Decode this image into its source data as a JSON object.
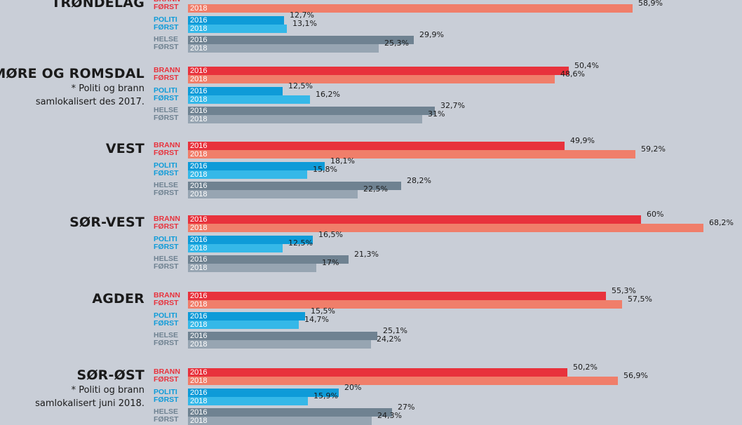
{
  "chart_data": {
    "type": "bar",
    "orientation": "horizontal",
    "xlim": [
      0,
      70
    ],
    "grid": false,
    "legend": "inline",
    "years": [
      "2016",
      "2018"
    ],
    "services": [
      {
        "key": "brann",
        "label_1": "BRANN",
        "label_2": "FØRST",
        "colors": [
          "#e8323c",
          "#f07e6a"
        ],
        "label_color": "#e8323c"
      },
      {
        "key": "politi",
        "label_1": "POLITI",
        "label_2": "FØRST",
        "colors": [
          "#0e9bd8",
          "#35b8e8"
        ],
        "label_color": "#0e9bd8"
      },
      {
        "key": "helse",
        "label_1": "HELSE",
        "label_2": "FØRST",
        "colors": [
          "#6f8291",
          "#97a5b2"
        ],
        "label_color": "#6f8291"
      }
    ],
    "regions": [
      {
        "name": "TRØNDELAG",
        "note": [],
        "brann": {
          "values": [
            null,
            58.9
          ],
          "labels": [
            "",
            "58,9%"
          ]
        },
        "politi": {
          "values": [
            12.7,
            13.1
          ],
          "labels": [
            "12,7%",
            "13,1%"
          ]
        },
        "helse": {
          "values": [
            29.9,
            25.3
          ],
          "labels": [
            "29,9%",
            "25,3%"
          ]
        }
      },
      {
        "name": "MØRE OG ROMSDAL",
        "note": [
          "* Politi og brann",
          "samlokalisert des 2017."
        ],
        "brann": {
          "values": [
            50.4,
            48.6
          ],
          "labels": [
            "50,4%",
            "48,6%"
          ]
        },
        "politi": {
          "values": [
            12.5,
            16.2
          ],
          "labels": [
            "12,5%",
            "16,2%"
          ]
        },
        "helse": {
          "values": [
            32.7,
            31
          ],
          "labels": [
            "32,7%",
            "31%"
          ]
        }
      },
      {
        "name": "VEST",
        "note": [],
        "brann": {
          "values": [
            49.9,
            59.2
          ],
          "labels": [
            "49,9%",
            "59,2%"
          ]
        },
        "politi": {
          "values": [
            18.1,
            15.8
          ],
          "labels": [
            "18,1%",
            "15,8%"
          ]
        },
        "helse": {
          "values": [
            28.2,
            22.5
          ],
          "labels": [
            "28,2%",
            "22,5%"
          ]
        }
      },
      {
        "name": "SØR-VEST",
        "note": [],
        "brann": {
          "values": [
            60,
            68.2
          ],
          "labels": [
            "60%",
            "68,2%"
          ]
        },
        "politi": {
          "values": [
            16.5,
            12.5
          ],
          "labels": [
            "16,5%",
            "12,5%"
          ]
        },
        "helse": {
          "values": [
            21.3,
            17
          ],
          "labels": [
            "21,3%",
            "17%"
          ]
        }
      },
      {
        "name": "AGDER",
        "note": [],
        "brann": {
          "values": [
            55.3,
            57.5
          ],
          "labels": [
            "55,3%",
            "57,5%"
          ]
        },
        "politi": {
          "values": [
            15.5,
            14.7
          ],
          "labels": [
            "15,5%",
            "14,7%"
          ]
        },
        "helse": {
          "values": [
            25.1,
            24.2
          ],
          "labels": [
            "25,1%",
            "24,2%"
          ]
        }
      },
      {
        "name": "SØR-ØST",
        "note": [
          "* Politi og brann",
          "samlokalisert juni 2018."
        ],
        "brann": {
          "values": [
            50.2,
            56.9
          ],
          "labels": [
            "50,2%",
            "56,9%"
          ]
        },
        "politi": {
          "values": [
            20,
            15.9
          ],
          "labels": [
            "20%",
            "15,9%"
          ]
        },
        "helse": {
          "values": [
            27,
            24.3
          ],
          "labels": [
            "27%",
            "24,3%"
          ]
        }
      }
    ]
  }
}
